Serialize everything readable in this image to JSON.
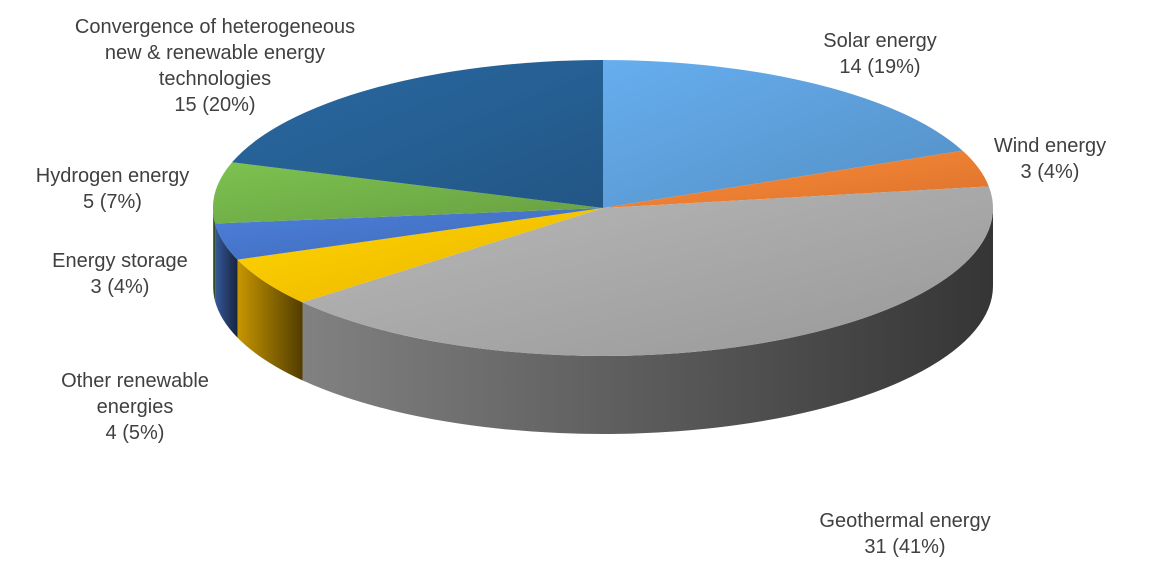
{
  "chart_data": {
    "type": "pie",
    "title": "",
    "style": "3d-exploded-none",
    "legend": "none",
    "slices": [
      {
        "name": "Solar energy",
        "value": 14,
        "percent": "19%",
        "color": "#5B9BD5",
        "display": "14 (19%)"
      },
      {
        "name": "Wind energy",
        "value": 3,
        "percent": "4%",
        "color": "#ED7D31",
        "display": "3 (4%)"
      },
      {
        "name": "Geothermal energy",
        "value": 31,
        "percent": "41%",
        "color": "#A5A5A5",
        "display": "31 (41%)"
      },
      {
        "name": "Other renewable energies",
        "value": 4,
        "percent": "5%",
        "color": "#FFC000",
        "display": "4 (5%)"
      },
      {
        "name": "Energy storage",
        "value": 3,
        "percent": "4%",
        "color": "#4472C4",
        "display": "3 (4%)"
      },
      {
        "name": "Hydrogen energy",
        "value": 5,
        "percent": "7%",
        "color": "#70AD47",
        "display": "5 (7%)"
      },
      {
        "name": "Convergence of heterogeneous new & renewable energy technologies",
        "value": 15,
        "percent": "20%",
        "color": "#255E91",
        "display": "15 (20%)"
      }
    ]
  },
  "labels": {
    "solar": {
      "name": "Solar energy",
      "value": "14 (19%)"
    },
    "wind": {
      "name": "Wind energy",
      "value": "3 (4%)"
    },
    "geothermal": {
      "name": "Geothermal energy",
      "value": "31 (41%)"
    },
    "other": {
      "line1": "Other renewable",
      "line2": "energies",
      "value": "4 (5%)"
    },
    "storage": {
      "name": "Energy storage",
      "value": "3 (4%)"
    },
    "hydrogen": {
      "name": "Hydrogen energy",
      "value": "5 (7%)"
    },
    "convergence": {
      "line1": "Convergence of heterogeneous",
      "line2": "new & renewable energy",
      "line3": "technologies",
      "value": "15 (20%)"
    }
  }
}
